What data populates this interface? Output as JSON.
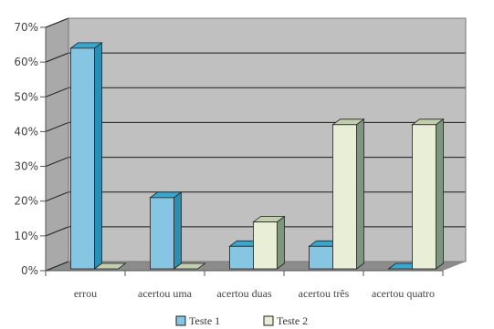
{
  "chart_data": {
    "type": "bar",
    "categories": [
      "errou",
      "acertou uma",
      "acertou duas",
      "acertou três",
      "acertou quatro"
    ],
    "series": [
      {
        "name": "Teste 1",
        "values": [
          64,
          21,
          7,
          7,
          0
        ],
        "front": "#87c6e2",
        "side": "#2a8fb4",
        "top": "#3aa6cc"
      },
      {
        "name": "Teste 2",
        "values": [
          0,
          0,
          14,
          42,
          42
        ],
        "front": "#e9eed7",
        "side": "#7e957e",
        "top": "#c2cfae"
      }
    ],
    "y_ticks": [
      "0%",
      "10%",
      "20%",
      "30%",
      "40%",
      "50%",
      "60%",
      "70%"
    ],
    "ylim": [
      0,
      70
    ],
    "grid": true,
    "legend_position": "bottom",
    "colors": {
      "back_wall": "#c0c0c0",
      "side_wall": "#a9a9a9",
      "floor": "#8c8c8c",
      "grid": "#1a1a1a"
    }
  }
}
